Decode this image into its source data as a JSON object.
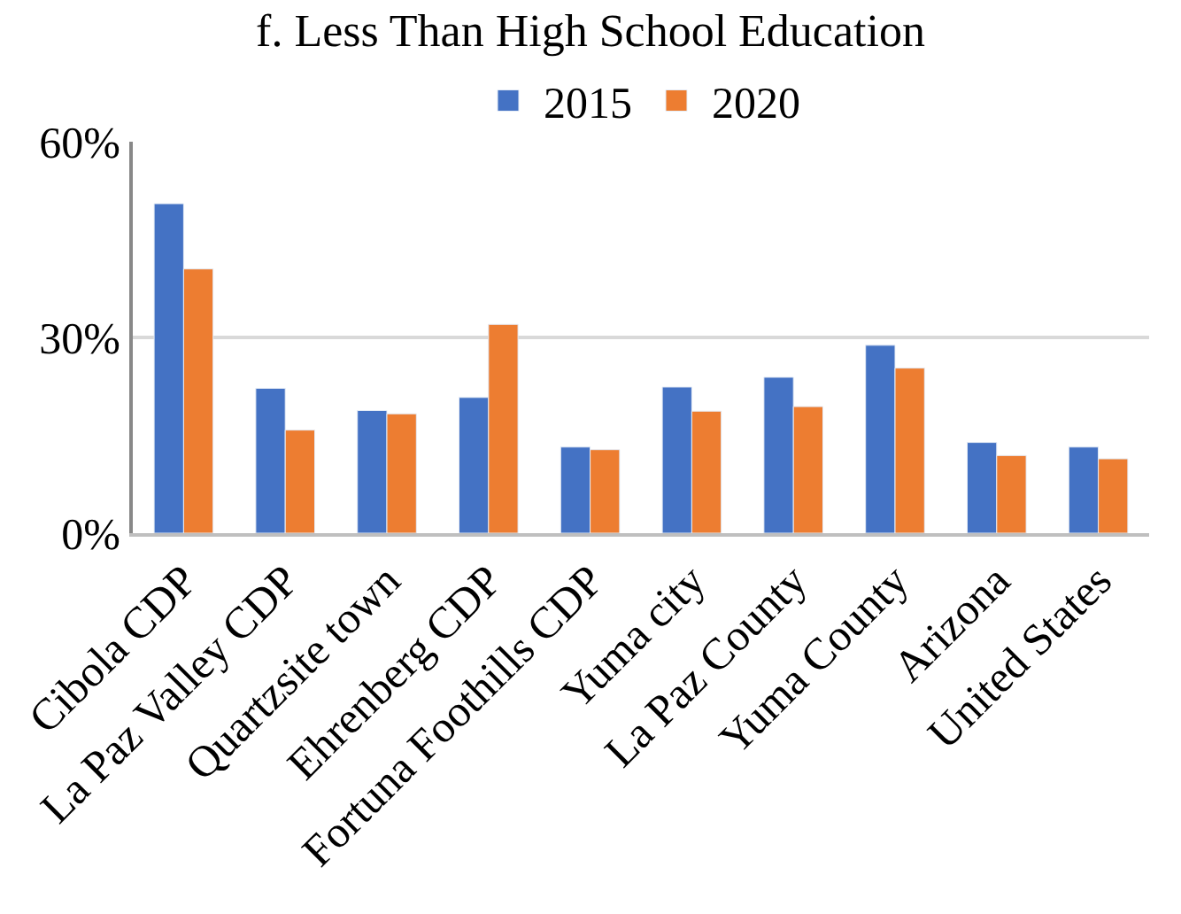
{
  "chart_data": {
    "type": "bar",
    "title": "f. Less Than High School Education",
    "categories": [
      "Cibola CDP",
      "La Paz Valley CDP",
      "Quartzsite town",
      "Ehrenberg CDP",
      "Fortuna Foothills CDP",
      "Yuma city",
      "La Paz County",
      "Yuma County",
      "Arizona",
      "United States"
    ],
    "series": [
      {
        "name": "2015",
        "color": "#4472c4",
        "values": [
          50.5,
          22.2,
          18.8,
          20.8,
          13.2,
          22.4,
          23.9,
          28.8,
          13.9,
          13.2
        ]
      },
      {
        "name": "2020",
        "color": "#ed7d31",
        "values": [
          40.5,
          15.8,
          18.3,
          32.0,
          12.8,
          18.7,
          19.4,
          25.3,
          11.9,
          11.4
        ]
      }
    ],
    "ylim": [
      0,
      60
    ],
    "yticks": [
      {
        "value": 0,
        "label": "0%"
      },
      {
        "value": 30,
        "label": "30%"
      },
      {
        "value": 60,
        "label": "60%"
      }
    ],
    "grid": "y",
    "legend": "top"
  }
}
